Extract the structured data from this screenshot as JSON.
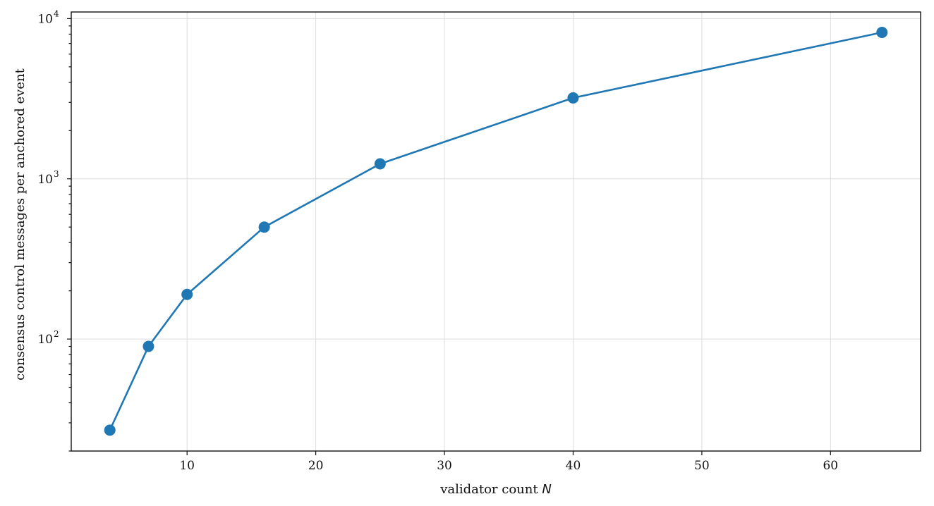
{
  "chart_data": {
    "type": "line",
    "xlabel": "validator count",
    "xlabel_var": "N",
    "ylabel": "consensus control messages per anchored event",
    "y_scale": "log",
    "grid": true,
    "xlim": [
      1,
      67
    ],
    "ylim": [
      20,
      11000
    ],
    "x_ticks": [
      10,
      20,
      30,
      40,
      50,
      60
    ],
    "y_ticks": [
      {
        "value": 100,
        "base": "10",
        "exp": "2"
      },
      {
        "value": 1000,
        "base": "10",
        "exp": "3"
      },
      {
        "value": 10000,
        "base": "10",
        "exp": "4"
      }
    ],
    "colors": {
      "series": "#1f77b4"
    },
    "series": [
      {
        "x": [
          4,
          7,
          10,
          16,
          25,
          40,
          64
        ],
        "y": [
          27,
          90,
          190,
          500,
          1240,
          3200,
          8200
        ]
      }
    ]
  }
}
